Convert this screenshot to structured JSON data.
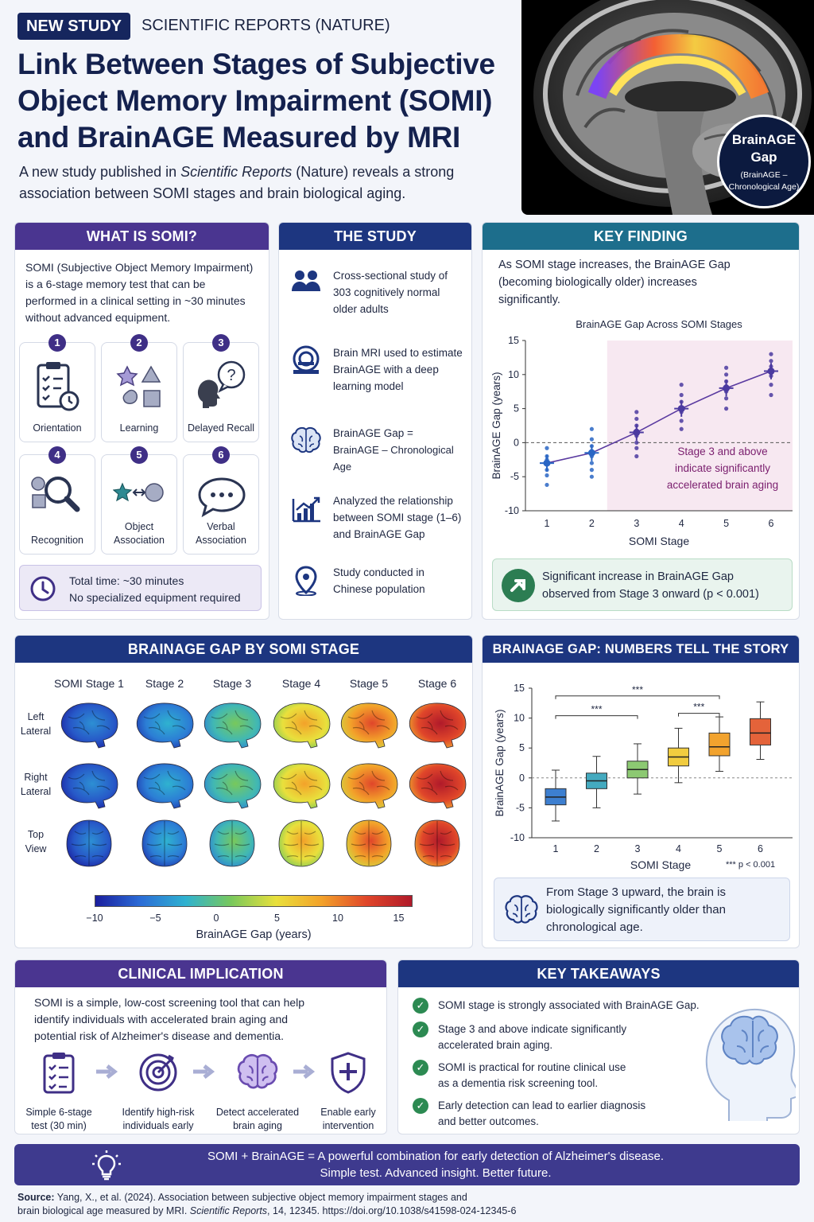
{
  "header": {
    "badge": "NEW STUDY",
    "journal": "SCIENTIFIC REPORTS (NATURE)",
    "title_lines": [
      "Link Between Stages of Subjective",
      "Object Memory Impairment (SOMI)",
      "and BrainAGE Measured by MRI"
    ],
    "intro_a": "A new study published in ",
    "intro_journal": "Scientific Reports",
    "intro_b": " (Nature) reveals a strong",
    "intro_line2": "association between SOMI stages and brain biological aging."
  },
  "hero_badge": {
    "title_1": "BrainAGE",
    "title_2": "Gap",
    "sub_1": "(BrainAGE –",
    "sub_2": "Chronological Age)"
  },
  "what_is": {
    "heading": "WHAT IS SOMI?",
    "text": [
      "SOMI (Subjective Object Memory Impairment)",
      "is a 6-stage memory test that can be",
      "performed in a clinical setting in ~30 minutes",
      "without advanced equipment."
    ],
    "stages": [
      {
        "num": "1",
        "label": "Orientation",
        "icon": "clipboard-clock-icon"
      },
      {
        "num": "2",
        "label": "Learning",
        "icon": "shapes-icon"
      },
      {
        "num": "3",
        "label": "Delayed Recall",
        "icon": "head-question-icon"
      },
      {
        "num": "4",
        "label": "Recognition",
        "icon": "magnifier-shapes-icon"
      },
      {
        "num": "5",
        "label": "Object Association",
        "label_1": "Object",
        "label_2": "Association",
        "icon": "star-arrow-circle-icon"
      },
      {
        "num": "6",
        "label": "Verbal Association",
        "label_1": "Verbal",
        "label_2": "Association",
        "icon": "speech-bubble-icon"
      }
    ],
    "total_line1": "Total time: ~30 minutes",
    "total_line2": "No specialized equipment required"
  },
  "study": {
    "heading": "THE STUDY",
    "items": [
      {
        "icon": "people-icon",
        "lines": [
          "Cross-sectional study of",
          "303 cognitively normal",
          "older adults"
        ]
      },
      {
        "icon": "mri-scanner-icon",
        "lines": [
          "Brain MRI used to estimate",
          "BrainAGE with a deep",
          "learning model"
        ]
      },
      {
        "icon": "brain-icon",
        "lines": [
          "BrainAGE Gap =",
          "BrainAGE – Chronological Age"
        ]
      },
      {
        "icon": "bar-chart-icon",
        "lines": [
          "Analyzed the relationship",
          "between SOMI stage (1–6)",
          "and BrainAGE Gap"
        ]
      },
      {
        "icon": "location-pin-icon",
        "lines": [
          "Study conducted in",
          "Chinese population"
        ]
      }
    ]
  },
  "key_finding": {
    "heading": "KEY FINDING",
    "text": [
      "As SOMI stage increases, the BrainAGE Gap",
      "(becoming biologically older) increases",
      "significantly."
    ],
    "callout": [
      "Significant increase in BrainAGE Gap",
      "observed from Stage 3 onward (p < 0.001)"
    ]
  },
  "map_section": {
    "heading": "BRAINAGE GAP BY SOMI STAGE",
    "stage_labels": [
      "SOMI Stage 1",
      "Stage 2",
      "Stage 3",
      "Stage 4",
      "Stage 5",
      "Stage 6"
    ],
    "row_labels": [
      [
        "Left",
        "Lateral"
      ],
      [
        "Right",
        "Lateral"
      ],
      [
        "Top",
        "View"
      ]
    ],
    "stage_values": [
      -7,
      -5,
      -1,
      6,
      9,
      12
    ],
    "colorbar_ticks": [
      "−10",
      "−5",
      "0",
      "5",
      "10",
      "15"
    ],
    "colorbar_label": "BrainAGE Gap (years)"
  },
  "numbers": {
    "heading": "BRAINAGE GAP: NUMBERS TELL THE STORY",
    "callout": [
      "From Stage 3 upward, the brain is",
      "biologically significantly older than",
      "chronological age."
    ],
    "sig_note": "*** p < 0.001"
  },
  "clinical": {
    "heading": "CLINICAL IMPLICATION",
    "text": [
      "SOMI is a simple, low-cost screening tool that can help",
      "identify individuals with accelerated brain aging and",
      "potential risk of Alzheimer's disease and dementia."
    ],
    "steps": [
      {
        "icon": "checklist-icon",
        "lines": [
          "Simple 6-stage",
          "test (30 min)"
        ]
      },
      {
        "icon": "target-icon",
        "lines": [
          "Identify high-risk",
          "individuals early"
        ]
      },
      {
        "icon": "brain-icon",
        "lines": [
          "Detect accelerated",
          "brain aging"
        ]
      },
      {
        "icon": "shield-plus-icon",
        "lines": [
          "Enable early",
          "intervention"
        ]
      }
    ]
  },
  "takeaways": {
    "heading": "KEY TAKEAWAYS",
    "items": [
      [
        "SOMI stage is strongly associated with BrainAGE Gap."
      ],
      [
        "Stage 3 and above indicate significantly",
        "accelerated brain aging."
      ],
      [
        "SOMI is practical for routine clinical use",
        "as a dementia risk screening tool."
      ],
      [
        "Early detection can lead to earlier diagnosis",
        "and better outcomes."
      ]
    ]
  },
  "banner": {
    "line1": "SOMI + BrainAGE = A powerful combination for early detection of Alzheimer's disease.",
    "line2": "Simple test. Advanced insight. Better future."
  },
  "source": {
    "label": "Source:",
    "line1": " Yang, X., et al. (2024). Association between subjective object memory impairment stages and",
    "line2a": "brain biological age measured by MRI. ",
    "journal": "Scientific Reports",
    "line2b": ", 14, 12345.   https://doi.org/10.1038/s41598-024-12345-6"
  },
  "colors": {
    "purple": "#4a3590",
    "navy": "#1d3680",
    "teal": "#1d6e8c",
    "green": "#2c8a52"
  },
  "chart_data": [
    {
      "type": "scatter",
      "title": "BrainAGE Gap Across SOMI Stages",
      "xlabel": "SOMI Stage",
      "ylabel": "BrainAGE Gap (years)",
      "categories": [
        1,
        2,
        3,
        4,
        5,
        6
      ],
      "means": [
        -3,
        -1.5,
        1.5,
        5,
        8,
        10.5
      ],
      "ci": [
        [
          -4.2,
          -1.8
        ],
        [
          -2.7,
          -0.3
        ],
        [
          0.3,
          2.7
        ],
        [
          3.8,
          6.2
        ],
        [
          6.8,
          9.2
        ],
        [
          9.3,
          11.7
        ]
      ],
      "points": [
        [
          -0.8,
          -2,
          -2.5,
          -3.2,
          -4,
          -4.8,
          -6.2
        ],
        [
          2,
          0.5,
          -0.5,
          -1.2,
          -2,
          -3,
          -4,
          -5
        ],
        [
          4.5,
          3.5,
          2.5,
          1.8,
          1,
          0,
          -0.8,
          -2
        ],
        [
          8.5,
          7,
          6,
          5.2,
          4.5,
          3.2,
          2
        ],
        [
          11,
          10,
          9,
          8.3,
          7.5,
          6.5,
          5
        ],
        [
          13,
          12,
          11.2,
          10.5,
          9.8,
          8.5,
          7
        ]
      ],
      "ylim": [
        -10,
        15
      ],
      "yticks": [
        15,
        10,
        5,
        0,
        -5,
        -10
      ],
      "trend": "line",
      "shaded_from_stage": 3,
      "annotation": [
        "Stage 3 and above",
        "indicate significantly",
        "accelerated brain aging"
      ]
    },
    {
      "type": "box",
      "xlabel": "SOMI Stage",
      "ylabel": "BrainAGE Gap (years)",
      "categories": [
        1,
        2,
        3,
        4,
        5,
        6
      ],
      "boxes": [
        {
          "min": -7.2,
          "q1": -4.5,
          "median": -3.2,
          "q3": -1.8,
          "max": 1.3,
          "color": "#3d7fd0"
        },
        {
          "min": -5,
          "q1": -1.8,
          "median": -0.5,
          "q3": 0.8,
          "max": 3.6,
          "color": "#44aabf"
        },
        {
          "min": -2.7,
          "q1": 0,
          "median": 1.4,
          "q3": 2.8,
          "max": 5.7,
          "color": "#8cc972"
        },
        {
          "min": -0.8,
          "q1": 2,
          "median": 3.5,
          "q3": 5,
          "max": 8.3,
          "color": "#f1cc3f"
        },
        {
          "min": 1.1,
          "q1": 3.7,
          "median": 5.2,
          "q3": 7.5,
          "max": 10.2,
          "color": "#f2a32e"
        },
        {
          "min": 3.1,
          "q1": 5.5,
          "median": 7.5,
          "q3": 9.9,
          "max": 12.7,
          "color": "#e4633a"
        }
      ],
      "ylim": [
        -10,
        15
      ],
      "yticks": [
        15,
        10,
        5,
        0,
        -5,
        -10
      ],
      "significance": [
        {
          "from": 1,
          "to": 3,
          "label": "***"
        },
        {
          "from": 1,
          "to": 5,
          "label": "***"
        },
        {
          "from": 4,
          "to": 5,
          "label": "***"
        }
      ]
    }
  ]
}
